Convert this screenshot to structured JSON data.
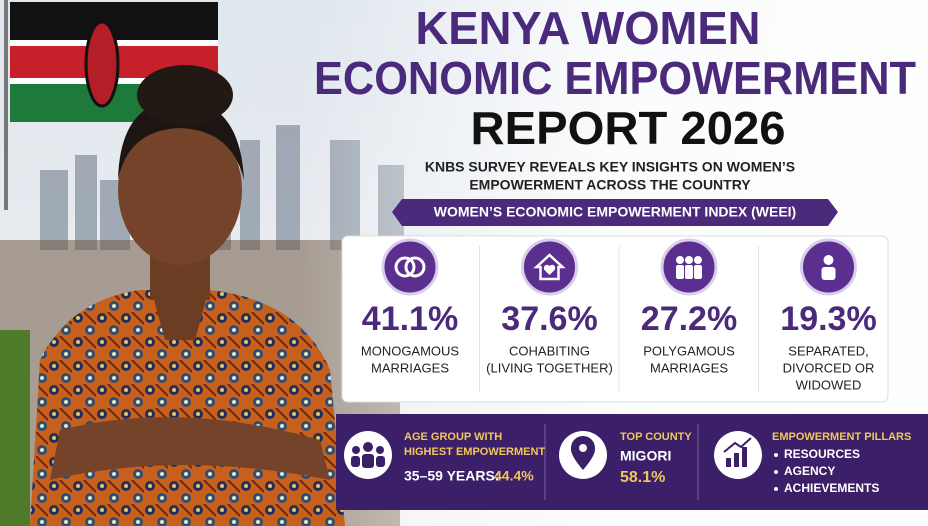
{
  "header": {
    "title_lines": [
      "KENYA WOMEN",
      "ECONOMIC EMPOWERMENT",
      "REPORT 2026"
    ],
    "subtitle_lines": [
      "KNBS SURVEY REVEALS KEY INSIGHTS ON WOMEN’S",
      "EMPOWERMENT ACROSS THE COUNTRY"
    ]
  },
  "banner": "WOMEN’S ECONOMIC EMPOWERMENT INDEX (WEEI)",
  "stats": [
    {
      "value": "41.1%",
      "label_lines": [
        "MONOGAMOUS",
        "MARRIAGES"
      ]
    },
    {
      "value": "37.6%",
      "label_lines": [
        "COHABITING",
        "(LIVING TOGETHER)"
      ]
    },
    {
      "value": "27.2%",
      "label_lines": [
        "POLYGAMOUS",
        "MARRIAGES"
      ]
    },
    {
      "value": "19.3%",
      "label_lines": [
        "SEPARATED,",
        "DIVORCED OR",
        "WIDOWED"
      ]
    }
  ],
  "highlights": {
    "age_group": {
      "heading_lines": [
        "AGE GROUP WITH",
        "HIGHEST EMPOWERMENT"
      ],
      "range": "35–59 YEARS:",
      "value": "44.4%"
    },
    "top_county": {
      "heading": "TOP COUNTY",
      "name": "MIGORI",
      "value": "58.1%"
    },
    "pillars": {
      "heading": "EMPOWERMENT PILLARS",
      "items": [
        "RESOURCES",
        "AGENCY",
        "ACHIEVEMENTS"
      ]
    }
  }
}
